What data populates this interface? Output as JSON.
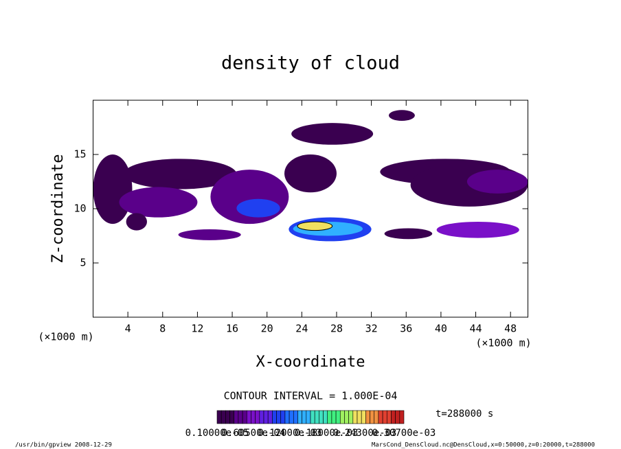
{
  "chart_data": {
    "type": "contour",
    "title": "density of cloud",
    "x_label": "X-coordinate",
    "y_label": "Z-coordinate",
    "x_unit": "(×1000 m)",
    "y_unit": "(×1000 m)",
    "xlim": [
      0,
      50
    ],
    "ylim": [
      0,
      20
    ],
    "xticks": [
      4,
      8,
      12,
      16,
      20,
      24,
      28,
      32,
      36,
      40,
      44,
      48
    ],
    "yticks": [
      5,
      10,
      15
    ],
    "contour_interval": "CONTOUR INTERVAL = 1.000E-04",
    "time_label": "t=288000 s",
    "colors": [
      "#3a0050",
      "#5a008a",
      "#7a10c8",
      "#6020e0",
      "#2040f0",
      "#2070ff",
      "#30b0ff",
      "#40e0c0",
      "#40f080",
      "#a0f060",
      "#f0e060",
      "#f09040",
      "#e04030",
      "#c02020"
    ],
    "colorbar_ticks": [
      {
        "value": 1e-06,
        "label": "0.10000e-05"
      },
      {
        "value": 6.05e-05,
        "label": "0.60500e-04"
      },
      {
        "value": 0.00012,
        "label": "0.12000e-03"
      },
      {
        "value": 0.00018,
        "label": "0.18000e-03"
      },
      {
        "value": 0.000243,
        "label": "0.24300e-03"
      },
      {
        "value": 0.000307,
        "label": "0.30700e-03"
      }
    ],
    "regions": [
      {
        "x_range": [
          0,
          4.5
        ],
        "z_range": [
          8.6,
          15
        ],
        "value": 2e-05
      },
      {
        "x_range": [
          3.5,
          16.5
        ],
        "z_range": [
          11.8,
          14.6
        ],
        "value": 1.5e-05
      },
      {
        "x_range": [
          3,
          12
        ],
        "z_range": [
          9.2,
          12
        ],
        "value": 3e-05
      },
      {
        "x_range": [
          3.8,
          6.2
        ],
        "z_range": [
          8,
          9.6
        ],
        "value": 2e-05
      },
      {
        "x_range": [
          9.8,
          17
        ],
        "z_range": [
          7.1,
          8.1
        ],
        "value": 4e-05
      },
      {
        "x_range": [
          13.5,
          22.5
        ],
        "z_range": [
          8.6,
          13.6
        ],
        "value": 4e-05
      },
      {
        "x_range": [
          16.5,
          21.5
        ],
        "z_range": [
          9.2,
          10.9
        ],
        "value": 0.00011
      },
      {
        "x_range": [
          22.5,
          32
        ],
        "z_range": [
          7,
          9.2
        ],
        "value": 9e-05
      },
      {
        "x_range": [
          23,
          31
        ],
        "z_range": [
          7.5,
          8.8
        ],
        "value": 0.00014
      },
      {
        "x_range": [
          23.5,
          27.5
        ],
        "z_range": [
          8,
          8.8
        ],
        "value": 0.00022
      },
      {
        "x_range": [
          22.8,
          32.2
        ],
        "z_range": [
          15.9,
          17.9
        ],
        "value": 1.5e-05
      },
      {
        "x_range": [
          22,
          28
        ],
        "z_range": [
          11.5,
          15
        ],
        "value": 1.2e-05
      },
      {
        "x_range": [
          34,
          37
        ],
        "z_range": [
          18.1,
          19.1
        ],
        "value": 1.5e-05
      },
      {
        "x_range": [
          33,
          48
        ],
        "z_range": [
          12.2,
          14.6
        ],
        "value": 1.5e-05
      },
      {
        "x_range": [
          36.5,
          50
        ],
        "z_range": [
          10.2,
          14.2
        ],
        "value": 2e-05
      },
      {
        "x_range": [
          43,
          50
        ],
        "z_range": [
          11.4,
          13.6
        ],
        "value": 4e-05
      },
      {
        "x_range": [
          39.5,
          49
        ],
        "z_range": [
          7.3,
          8.8
        ],
        "value": 5e-05
      },
      {
        "x_range": [
          33.5,
          39
        ],
        "z_range": [
          7.2,
          8.2
        ],
        "value": 2e-05
      }
    ],
    "footer_left": "/usr/bin/gpview  2008-12-29",
    "footer_right": "MarsCond_DensCloud.nc@DensCloud,x=0:50000,z=0:20000,t=288000"
  }
}
